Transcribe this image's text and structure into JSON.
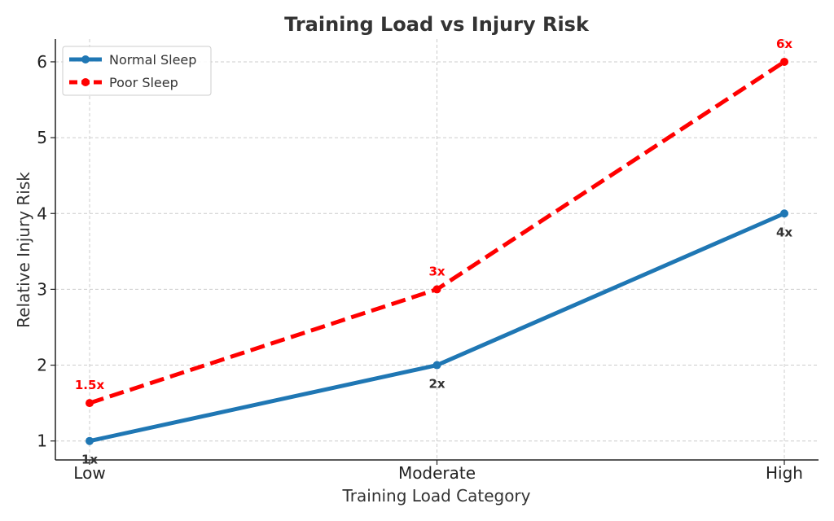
{
  "chart_data": {
    "type": "line",
    "title": "Training Load vs Injury Risk",
    "xlabel": "Training Load Category",
    "ylabel": "Relative Injury Risk",
    "categories": [
      "Low",
      "Moderate",
      "High"
    ],
    "ylim": [
      0.75,
      6.3
    ],
    "yticks": [
      1,
      2,
      3,
      4,
      5,
      6
    ],
    "grid": true,
    "legend_position": "top-left",
    "series": [
      {
        "name": "Normal Sleep",
        "values": [
          1,
          2,
          4
        ],
        "labels": [
          "1x",
          "2x",
          "4x"
        ],
        "color": "#1f77b4",
        "line_style": "solid",
        "label_position": "below",
        "label_color": "#333333"
      },
      {
        "name": "Poor Sleep",
        "values": [
          1.5,
          3,
          6
        ],
        "labels": [
          "1.5x",
          "3x",
          "6x"
        ],
        "color": "#ff0000",
        "line_style": "dashed",
        "label_position": "above",
        "label_color": "#ff0000"
      }
    ]
  }
}
